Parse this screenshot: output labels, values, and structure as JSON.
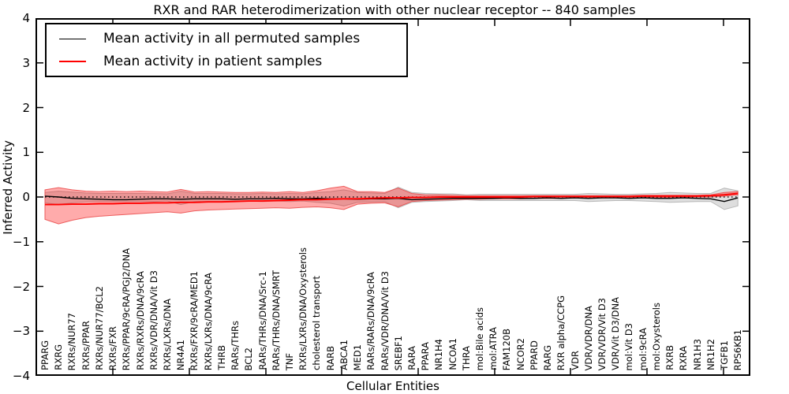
{
  "title": "RXR and RAR heterodimerization with other nuclear receptor -- 840 samples",
  "legend": {
    "permuted_label": "Mean activity in all permuted samples",
    "patient_label": "Mean activity in patient samples"
  },
  "colors": {
    "permuted_line": "#000000",
    "patient_line": "#ff0000",
    "permuted_band_fill": "rgba(160,160,160,0.35)",
    "permuted_band_edge": "rgba(165,165,165,0.75)",
    "patient_band_fill": "rgba(255,0,0,0.33)",
    "patient_band_edge": "rgba(235,80,80,0.9)"
  },
  "chart_data": {
    "type": "line",
    "title": "RXR and RAR heterodimerization with other nuclear receptor -- 840 samples",
    "xlabel": "Cellular Entities",
    "ylabel": "Inferred Activity",
    "ylim": [
      -4,
      4
    ],
    "yticks": [
      4,
      3,
      2,
      1,
      0,
      -1,
      -2,
      -3,
      -4
    ],
    "ytick_labels": [
      "4",
      "3",
      "2",
      "1",
      "0",
      "−1",
      "−2",
      "−3",
      "−4"
    ],
    "grid": false,
    "legend_position": "upper left",
    "zero_reference_line": 0,
    "categories": [
      "PPARG",
      "RXRG",
      "RXRs/NUR77",
      "RXRs/PPAR",
      "RXRs/NUR77/BCL2",
      "RXRs/FXR",
      "RXRs/PPAR/9cRA/PGJ2/DNA",
      "RXRs/RXRs/DNA/9cRA",
      "RXRs/VDR/DNA/Vit D3",
      "RXRs/LXRs/DNA",
      "NR4A1",
      "RXRs/FXR/9cRA/MED1",
      "RXRs/LXRs/DNA/9cRA",
      "THRB",
      "RARs/THRs",
      "BCL2",
      "RARs/THRs/DNA/Src-1",
      "RARs/THRs/DNA/SMRT",
      "TNF",
      "RXRs/LXRs/DNA/Oxysterols",
      "cholesterol transport",
      "RARB",
      "ABCA1",
      "MED1",
      "RARs/RARs/DNA/9cRA",
      "RARs/VDR/DNA/Vit D3",
      "SREBF1",
      "RARA",
      "PPARA",
      "NR1H4",
      "NCOA1",
      "THRA",
      "mol:Bile acids",
      "mol:ATRA",
      "FAM120B",
      "NCOR2",
      "PPARD",
      "RARG",
      "RXR alpha/CCPG",
      "VDR",
      "VDR/VDR/DNA",
      "VDR/VDR/Vit D3",
      "VDR/Vit D3/DNA",
      "mol:Vit D3",
      "mol:9cRA",
      "mol:Oxysterols",
      "RXRB",
      "RXRA",
      "NR1H3",
      "NR1H2",
      "TGFB1",
      "RPS6KB1"
    ],
    "series": [
      {
        "name": "Mean activity in all permuted samples",
        "color": "#000000",
        "values": [
          0.02,
          0.0,
          -0.03,
          -0.04,
          -0.05,
          -0.06,
          -0.06,
          -0.05,
          -0.04,
          -0.04,
          -0.05,
          -0.04,
          -0.04,
          -0.04,
          -0.05,
          -0.04,
          -0.04,
          -0.03,
          -0.04,
          -0.04,
          -0.03,
          -0.04,
          -0.04,
          -0.05,
          -0.04,
          -0.04,
          -0.03,
          -0.06,
          -0.05,
          -0.04,
          -0.03,
          -0.03,
          -0.03,
          -0.03,
          -0.02,
          -0.03,
          -0.03,
          -0.02,
          -0.03,
          -0.02,
          -0.03,
          -0.02,
          -0.02,
          -0.03,
          -0.02,
          -0.03,
          -0.03,
          -0.02,
          -0.03,
          -0.04,
          -0.1,
          -0.02
        ]
      },
      {
        "name": "Mean activity in patient samples",
        "color": "#ff0000",
        "values": [
          -0.17,
          -0.17,
          -0.16,
          -0.16,
          -0.15,
          -0.15,
          -0.14,
          -0.14,
          -0.13,
          -0.13,
          -0.12,
          -0.12,
          -0.11,
          -0.11,
          -0.1,
          -0.09,
          -0.09,
          -0.08,
          -0.07,
          -0.06,
          -0.06,
          -0.05,
          -0.04,
          -0.04,
          -0.03,
          -0.02,
          -0.02,
          -0.01,
          -0.01,
          0.0,
          0.0,
          0.0,
          0.0,
          0.0,
          0.0,
          0.0,
          0.01,
          0.01,
          0.01,
          0.01,
          0.01,
          0.01,
          0.01,
          0.01,
          0.02,
          0.02,
          0.02,
          0.02,
          0.02,
          0.03,
          0.05,
          0.08
        ]
      }
    ],
    "bands": [
      {
        "name": "permuted-samples-range",
        "upper": [
          0.1,
          0.13,
          0.11,
          0.09,
          0.08,
          0.08,
          0.08,
          0.08,
          0.08,
          0.07,
          0.13,
          0.08,
          0.08,
          0.08,
          0.07,
          0.07,
          0.08,
          0.07,
          0.08,
          0.07,
          0.1,
          0.12,
          0.16,
          0.1,
          0.09,
          0.08,
          0.22,
          0.1,
          0.08,
          0.07,
          0.07,
          0.05,
          0.06,
          0.06,
          0.06,
          0.06,
          0.06,
          0.06,
          0.06,
          0.06,
          0.08,
          0.07,
          0.06,
          0.06,
          0.07,
          0.08,
          0.1,
          0.09,
          0.08,
          0.08,
          0.2,
          0.14
        ],
        "lower": [
          -0.13,
          -0.17,
          -0.13,
          -0.11,
          -0.1,
          -0.1,
          -0.1,
          -0.1,
          -0.1,
          -0.09,
          -0.17,
          -0.1,
          -0.1,
          -0.1,
          -0.09,
          -0.09,
          -0.1,
          -0.09,
          -0.1,
          -0.09,
          -0.12,
          -0.14,
          -0.2,
          -0.12,
          -0.11,
          -0.1,
          -0.24,
          -0.12,
          -0.1,
          -0.09,
          -0.08,
          -0.06,
          -0.08,
          -0.08,
          -0.08,
          -0.08,
          -0.08,
          -0.08,
          -0.08,
          -0.08,
          -0.1,
          -0.09,
          -0.08,
          -0.08,
          -0.09,
          -0.1,
          -0.12,
          -0.11,
          -0.1,
          -0.1,
          -0.28,
          -0.2
        ]
      },
      {
        "name": "patient-samples-range",
        "upper": [
          0.16,
          0.21,
          0.16,
          0.13,
          0.12,
          0.13,
          0.12,
          0.13,
          0.12,
          0.11,
          0.17,
          0.11,
          0.12,
          0.11,
          0.1,
          0.1,
          0.11,
          0.1,
          0.12,
          0.1,
          0.14,
          0.2,
          0.24,
          0.12,
          0.12,
          0.1,
          0.2,
          0.08,
          0.05,
          0.05,
          0.04,
          0.03,
          0.03,
          0.03,
          0.03,
          0.03,
          0.03,
          0.03,
          0.03,
          0.03,
          0.03,
          0.03,
          0.03,
          0.03,
          0.04,
          0.04,
          0.04,
          0.04,
          0.04,
          0.05,
          0.1,
          0.12
        ],
        "lower": [
          -0.5,
          -0.6,
          -0.52,
          -0.46,
          -0.43,
          -0.41,
          -0.39,
          -0.37,
          -0.35,
          -0.33,
          -0.36,
          -0.31,
          -0.29,
          -0.28,
          -0.27,
          -0.26,
          -0.25,
          -0.24,
          -0.25,
          -0.23,
          -0.22,
          -0.24,
          -0.28,
          -0.16,
          -0.14,
          -0.13,
          -0.22,
          -0.1,
          -0.08,
          -0.07,
          -0.06,
          -0.05,
          -0.05,
          -0.04,
          -0.04,
          -0.04,
          -0.03,
          -0.03,
          -0.03,
          -0.02,
          -0.02,
          -0.02,
          -0.02,
          -0.02,
          -0.01,
          -0.01,
          -0.01,
          -0.01,
          0.0,
          0.0,
          0.02,
          0.05
        ]
      }
    ]
  }
}
